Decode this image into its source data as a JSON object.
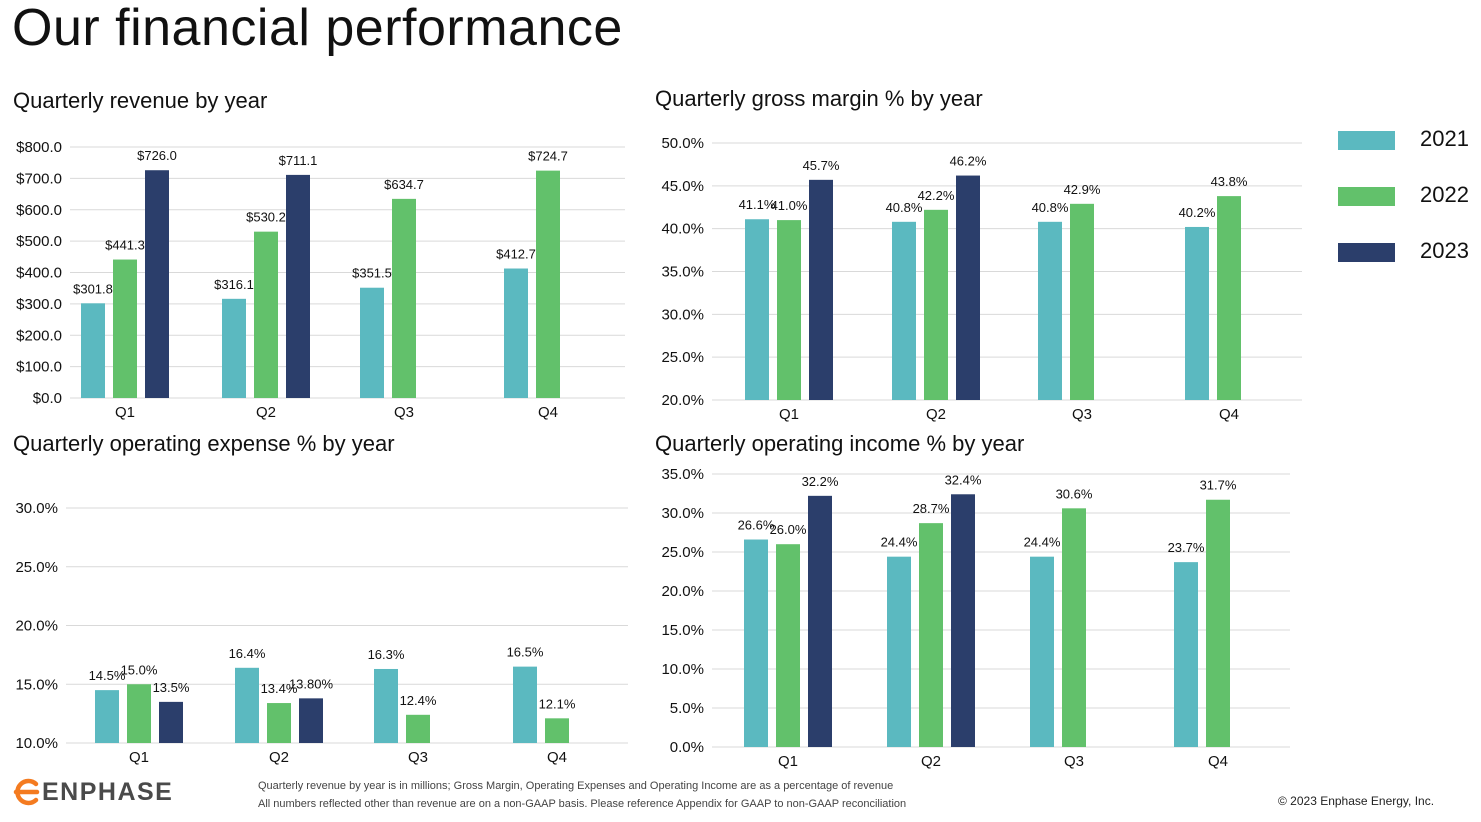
{
  "page": {
    "title": "Our financial performance",
    "footnote_line1": "Quarterly revenue by year is in millions; Gross Margin, Operating Expenses and Operating Income are as a percentage of revenue",
    "footnote_line2": "All numbers reflected other than revenue are on a non-GAAP basis.  Please reference Appendix for GAAP to non-GAAP reconciliation",
    "copyright": "© 2023 Enphase Energy, Inc.",
    "logo_text": "ENPHASE",
    "logo_icon": "enphase-e-logo-icon"
  },
  "colors": {
    "2021": "#5bb9c0",
    "2022": "#62c16b",
    "2023": "#2b3e6b",
    "grid": "#d9d9d9",
    "logo": "#f47b20"
  },
  "legend": [
    {
      "label": "2021",
      "color": "#5bb9c0"
    },
    {
      "label": "2022",
      "color": "#62c16b"
    },
    {
      "label": "2023",
      "color": "#2b3e6b"
    }
  ],
  "chart_data": [
    {
      "id": "revenue",
      "type": "bar",
      "title": "Quarterly revenue by year",
      "categories": [
        "Q1",
        "Q2",
        "Q3",
        "Q4"
      ],
      "ylim": [
        0,
        800
      ],
      "yticks": [
        "$0.0",
        "$100.0",
        "$200.0",
        "$300.0",
        "$400.0",
        "$500.0",
        "$600.0",
        "$700.0",
        "$800.0"
      ],
      "grid": true,
      "legend": "right",
      "series": [
        {
          "name": "2021",
          "values": [
            301.8,
            316.1,
            351.5,
            412.7
          ],
          "labels": [
            "$301.8",
            "$316.1",
            "$351.5",
            "$412.7"
          ]
        },
        {
          "name": "2022",
          "values": [
            441.3,
            530.2,
            634.7,
            724.7
          ],
          "labels": [
            "$441.3",
            "$530.2",
            "$634.7",
            "$724.7"
          ]
        },
        {
          "name": "2023",
          "values": [
            726.0,
            711.1,
            null,
            null
          ],
          "labels": [
            "$726.0",
            "$711.1",
            "",
            ""
          ]
        }
      ]
    },
    {
      "id": "gross-margin",
      "type": "bar",
      "title": "Quarterly gross margin % by year",
      "categories": [
        "Q1",
        "Q2",
        "Q3",
        "Q4"
      ],
      "ylim": [
        20,
        50
      ],
      "yticks": [
        "20.0%",
        "25.0%",
        "30.0%",
        "35.0%",
        "40.0%",
        "45.0%",
        "50.0%"
      ],
      "grid": true,
      "series": [
        {
          "name": "2021",
          "values": [
            41.1,
            40.8,
            40.8,
            40.2
          ],
          "labels": [
            "41.1%",
            "40.8%",
            "40.8%",
            "40.2%"
          ]
        },
        {
          "name": "2022",
          "values": [
            41.0,
            42.2,
            42.9,
            43.8
          ],
          "labels": [
            "41.0%",
            "42.2%",
            "42.9%",
            "43.8%"
          ]
        },
        {
          "name": "2023",
          "values": [
            45.7,
            46.2,
            null,
            null
          ],
          "labels": [
            "45.7%",
            "46.2%",
            "",
            ""
          ]
        }
      ]
    },
    {
      "id": "operating-expense",
      "type": "bar",
      "title": "Quarterly operating expense % by year",
      "categories": [
        "Q1",
        "Q2",
        "Q3",
        "Q4"
      ],
      "ylim": [
        10,
        30
      ],
      "yticks": [
        "10.0%",
        "15.0%",
        "20.0%",
        "25.0%",
        "30.0%"
      ],
      "grid": true,
      "series": [
        {
          "name": "2021",
          "values": [
            14.5,
            16.4,
            16.3,
            16.5
          ],
          "labels": [
            "14.5%",
            "16.4%",
            "16.3%",
            "16.5%"
          ]
        },
        {
          "name": "2022",
          "values": [
            15.0,
            13.4,
            12.4,
            12.1
          ],
          "labels": [
            "15.0%",
            "13.4%",
            "12.4%",
            "12.1%"
          ]
        },
        {
          "name": "2023",
          "values": [
            13.5,
            13.8,
            null,
            null
          ],
          "labels": [
            "13.5%",
            "13.80%",
            "",
            ""
          ]
        }
      ]
    },
    {
      "id": "operating-income",
      "type": "bar",
      "title": "Quarterly operating income % by year",
      "categories": [
        "Q1",
        "Q2",
        "Q3",
        "Q4"
      ],
      "ylim": [
        0,
        35
      ],
      "yticks": [
        "0.0%",
        "5.0%",
        "10.0%",
        "15.0%",
        "20.0%",
        "25.0%",
        "30.0%",
        "35.0%"
      ],
      "grid": true,
      "series": [
        {
          "name": "2021",
          "values": [
            26.6,
            24.4,
            24.4,
            23.7
          ],
          "labels": [
            "26.6%",
            "24.4%",
            "24.4%",
            "23.7%"
          ]
        },
        {
          "name": "2022",
          "values": [
            26.0,
            28.7,
            30.6,
            31.7
          ],
          "labels": [
            "26.0%",
            "28.7%",
            "30.6%",
            "31.7%"
          ]
        },
        {
          "name": "2023",
          "values": [
            32.2,
            32.4,
            null,
            null
          ],
          "labels": [
            "32.2%",
            "32.4%",
            "",
            ""
          ]
        }
      ]
    }
  ]
}
